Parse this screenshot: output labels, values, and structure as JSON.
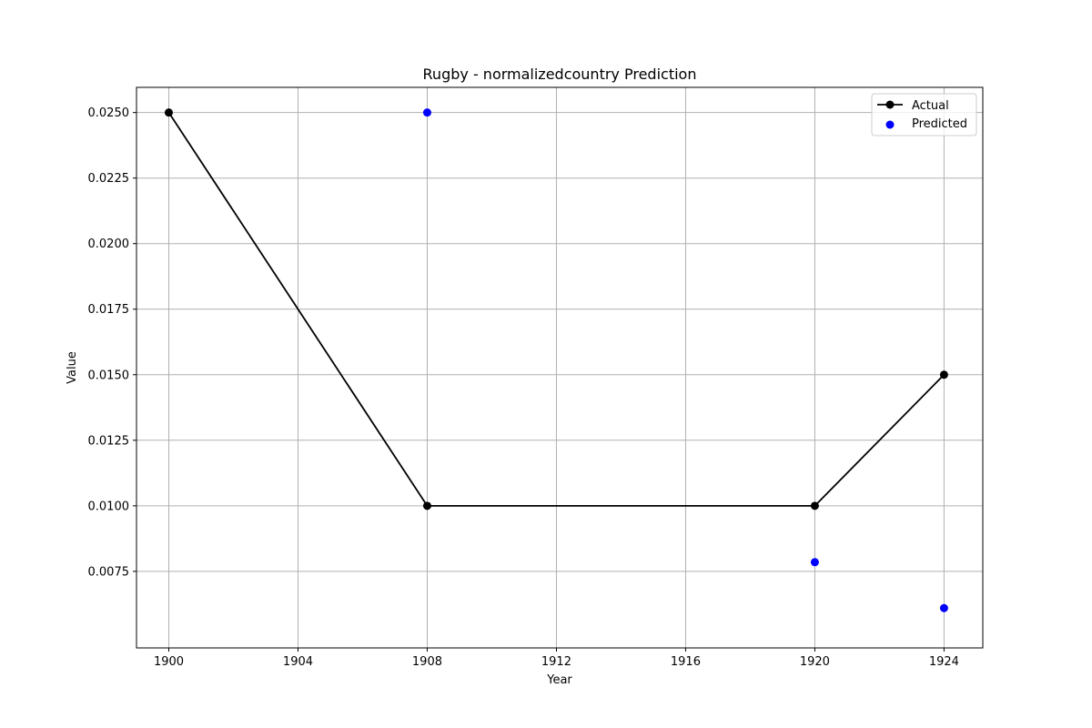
{
  "chart_data": {
    "type": "line",
    "title": "Rugby - normalizedcountry Prediction",
    "xlabel": "Year",
    "ylabel": "Value",
    "xlim": [
      1899,
      1925.2
    ],
    "ylim": [
      0.00458,
      0.02596
    ],
    "xticks": [
      1900,
      1904,
      1908,
      1912,
      1916,
      1920,
      1924
    ],
    "xtick_labels": [
      "1900",
      "1904",
      "1908",
      "1912",
      "1916",
      "1920",
      "1924"
    ],
    "yticks": [
      0.0075,
      0.01,
      0.0125,
      0.015,
      0.0175,
      0.02,
      0.0225,
      0.025
    ],
    "ytick_labels": [
      "0.0075",
      "0.0100",
      "0.0125",
      "0.0150",
      "0.0175",
      "0.0200",
      "0.0225",
      "0.0250"
    ],
    "grid": true,
    "legend_position": "top-right",
    "series": [
      {
        "name": "Actual",
        "kind": "line-marker",
        "color": "#000000",
        "x": [
          1900,
          1908,
          1920,
          1924
        ],
        "y": [
          0.025,
          0.01,
          0.01,
          0.015
        ]
      },
      {
        "name": "Predicted",
        "kind": "scatter",
        "color": "#0000ff",
        "x": [
          1908,
          1920,
          1924
        ],
        "y": [
          0.025,
          0.00785,
          0.0061
        ]
      }
    ]
  }
}
